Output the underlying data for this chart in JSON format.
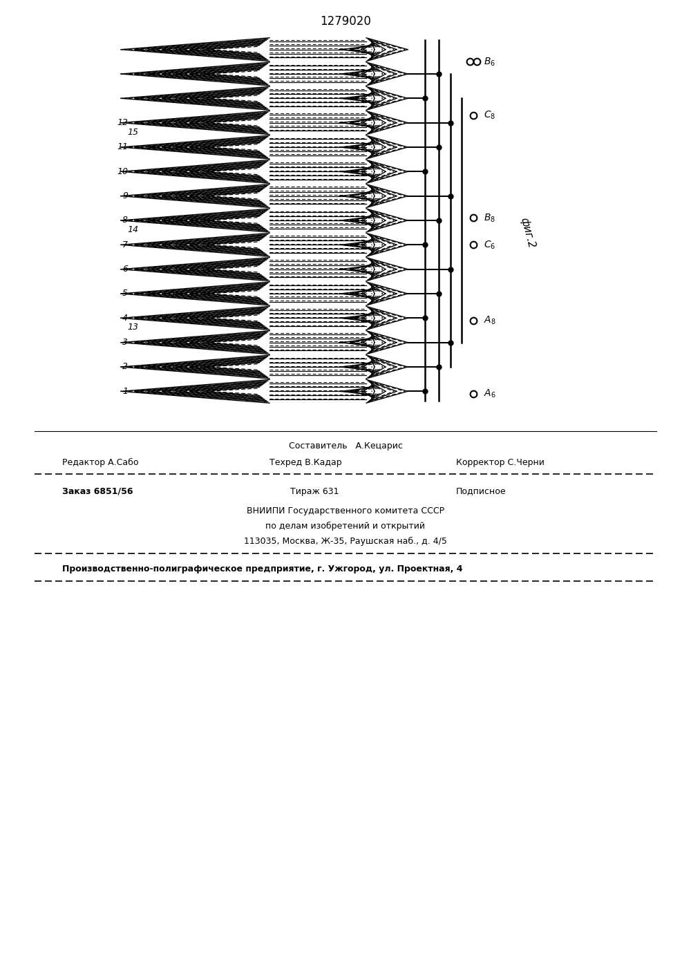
{
  "title": "1279020",
  "fig_label": "фиг.2",
  "background_color": "#ffffff",
  "line_color": "#000000",
  "footer_line1": "Составитель   А.Кецарис",
  "footer_line2_left": "Редактор А.Сабо",
  "footer_line2_mid": "Техред В.Кадар",
  "footer_line2_right": "Корректор С.Черни",
  "footer_line3_left": "Заказ 6851/56",
  "footer_line3_mid": "Тираж 631",
  "footer_line3_right": "Подписное",
  "footer_line4": "ВНИИПИ Государственного комитета СССР",
  "footer_line5": "по делам изобретений и открытий",
  "footer_line6": "113035, Москва, Ж-35, Раушская наб., д. 4/5",
  "footer_line7": "Производственно-полиграфическое предприятие, г. Ужгород, ул. Проектная, 4"
}
